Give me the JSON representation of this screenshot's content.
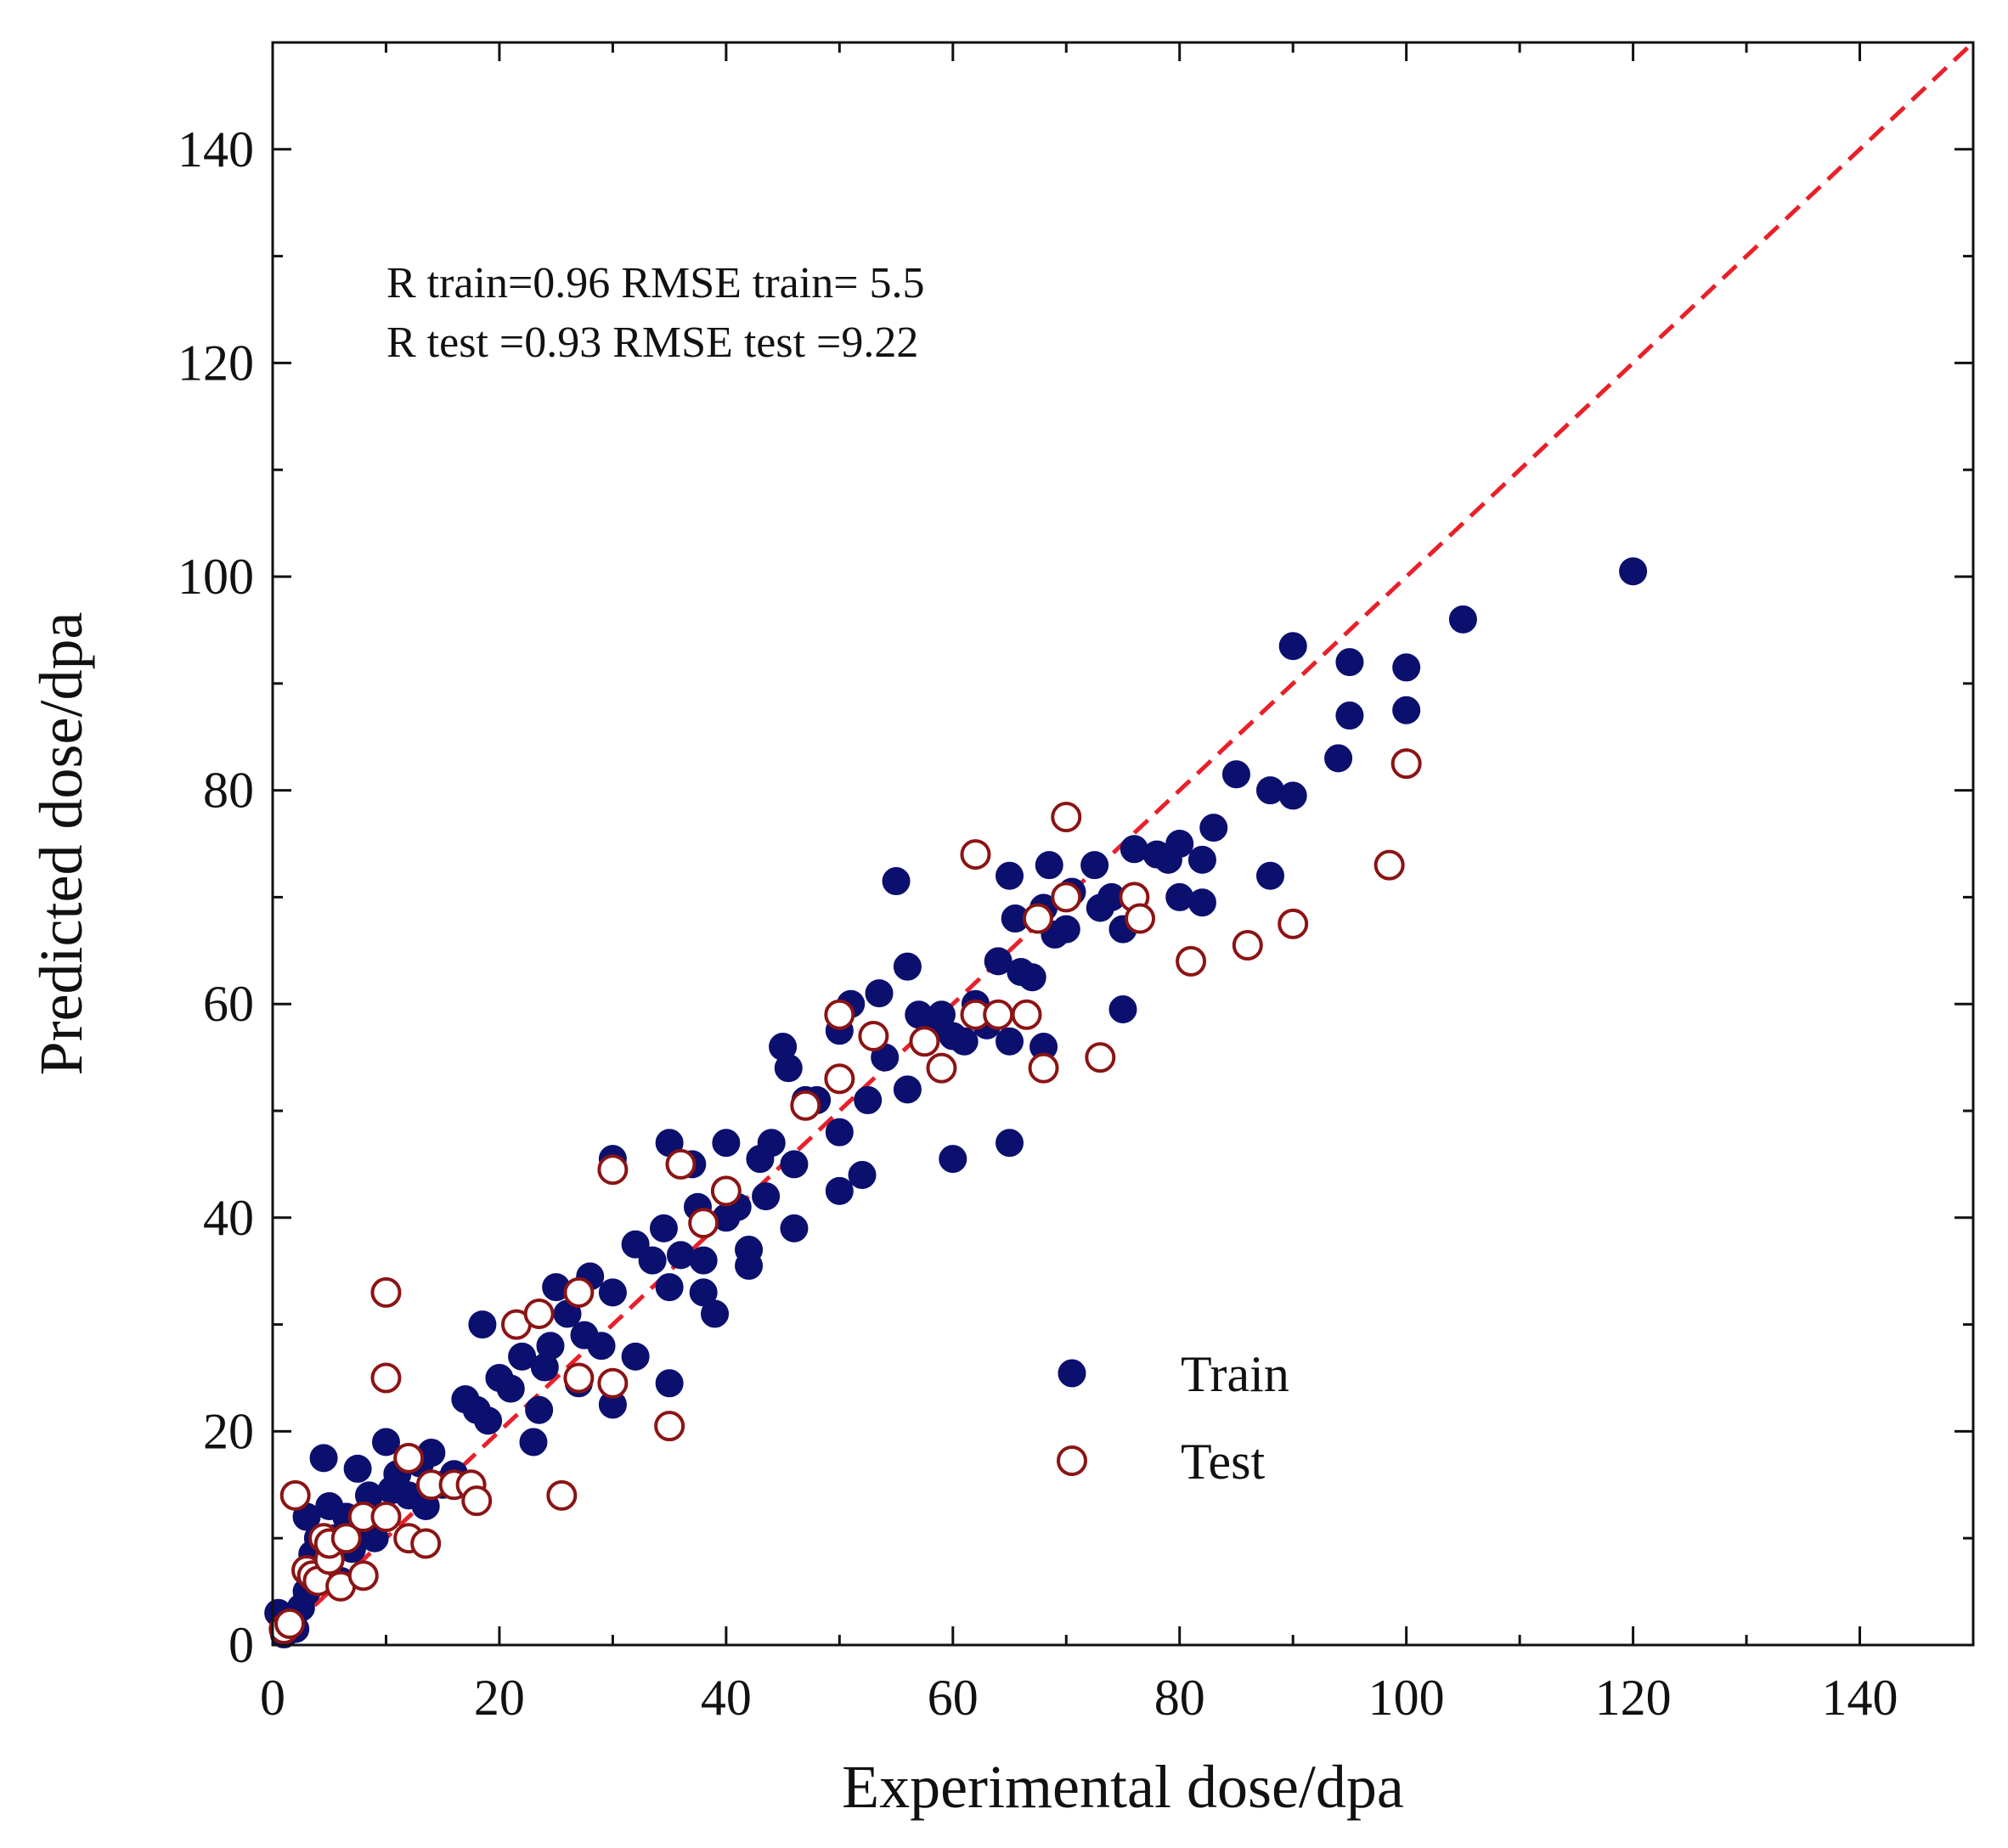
{
  "chart_data": {
    "type": "scatter",
    "xlabel": "Experimental dose/dpa",
    "ylabel": "Predicted dose/dpa",
    "xlim": [
      0,
      150
    ],
    "ylim": [
      0,
      150
    ],
    "xticks": [
      0,
      20,
      40,
      60,
      80,
      100,
      120,
      140
    ],
    "yticks": [
      0,
      20,
      40,
      60,
      80,
      100,
      120,
      140
    ],
    "reference_line": {
      "style": "dashed",
      "color": "#e8202a",
      "slope": 1,
      "intercept": 0
    },
    "annotations": [
      "R train=0.96 RMSE train= 5.5",
      "R test =0.93 RMSE test =9.22"
    ],
    "legend": {
      "placement": "lower-right"
    },
    "series": [
      {
        "name": "Train",
        "marker": "filled-circle",
        "color": "#0b0f6e",
        "points": [
          [
            0.5,
            3
          ],
          [
            1,
            1
          ],
          [
            1.5,
            2.5
          ],
          [
            2,
            1.5
          ],
          [
            2.5,
            3.5
          ],
          [
            3,
            5
          ],
          [
            3.5,
            8.5
          ],
          [
            3,
            12
          ],
          [
            4,
            10
          ],
          [
            4.5,
            17.5
          ],
          [
            5,
            13
          ],
          [
            5.5,
            10
          ],
          [
            6,
            6
          ],
          [
            6.5,
            12
          ],
          [
            7,
            9
          ],
          [
            7.5,
            16.5
          ],
          [
            8,
            11
          ],
          [
            8.5,
            14
          ],
          [
            9,
            10
          ],
          [
            10,
            19
          ],
          [
            10,
            12
          ],
          [
            10.5,
            14.5
          ],
          [
            10,
            25
          ],
          [
            11,
            16
          ],
          [
            12,
            14
          ],
          [
            13,
            17
          ],
          [
            14,
            18
          ],
          [
            13.5,
            13
          ],
          [
            15,
            15
          ],
          [
            16,
            16
          ],
          [
            17,
            23
          ],
          [
            18,
            22
          ],
          [
            18.5,
            30
          ],
          [
            19,
            21
          ],
          [
            20,
            25
          ],
          [
            21,
            24
          ],
          [
            22,
            27
          ],
          [
            23,
            19
          ],
          [
            23.5,
            22
          ],
          [
            24,
            26
          ],
          [
            24.5,
            28
          ],
          [
            25,
            33.5
          ],
          [
            26,
            31
          ],
          [
            27,
            24.5
          ],
          [
            27.5,
            29
          ],
          [
            28,
            34.5
          ],
          [
            29,
            28
          ],
          [
            30,
            45.5
          ],
          [
            30,
            33
          ],
          [
            30,
            22.5
          ],
          [
            32,
            27
          ],
          [
            32,
            37.5
          ],
          [
            33.5,
            36
          ],
          [
            34.5,
            39
          ],
          [
            35,
            47
          ],
          [
            35,
            24.5
          ],
          [
            35,
            33.5
          ],
          [
            36,
            36.5
          ],
          [
            37,
            45
          ],
          [
            37.5,
            41
          ],
          [
            38,
            33
          ],
          [
            38,
            36
          ],
          [
            39,
            31
          ],
          [
            40,
            47
          ],
          [
            40,
            40
          ],
          [
            41,
            41
          ],
          [
            42,
            35.5
          ],
          [
            42,
            37
          ],
          [
            43,
            45.5
          ],
          [
            43.5,
            42
          ],
          [
            44,
            47
          ],
          [
            45,
            56
          ],
          [
            45.5,
            54
          ],
          [
            46,
            45
          ],
          [
            46,
            39
          ],
          [
            47,
            51
          ],
          [
            48,
            51
          ],
          [
            50,
            57.5
          ],
          [
            50,
            48
          ],
          [
            50,
            42.5
          ],
          [
            51,
            60
          ],
          [
            52,
            44
          ],
          [
            52.5,
            51
          ],
          [
            53,
            57
          ],
          [
            53.5,
            61
          ],
          [
            54,
            55
          ],
          [
            55,
            71.5
          ],
          [
            56,
            63.5
          ],
          [
            56,
            52
          ],
          [
            57,
            59
          ],
          [
            58,
            58
          ],
          [
            59,
            59
          ],
          [
            60,
            45.5
          ],
          [
            60,
            57
          ],
          [
            61,
            56.5
          ],
          [
            62,
            60
          ],
          [
            63,
            58
          ],
          [
            64,
            64
          ],
          [
            65,
            72
          ],
          [
            65,
            47
          ],
          [
            65,
            56.5
          ],
          [
            65.5,
            68
          ],
          [
            66,
            63
          ],
          [
            67,
            62.5
          ],
          [
            68,
            69
          ],
          [
            68,
            56
          ],
          [
            68.5,
            73
          ],
          [
            69,
            66.5
          ],
          [
            70,
            67
          ],
          [
            70.5,
            70.5
          ],
          [
            72.5,
            73
          ],
          [
            73,
            69
          ],
          [
            74,
            70
          ],
          [
            75,
            67
          ],
          [
            75,
            59.5
          ],
          [
            76,
            74.5
          ],
          [
            78,
            74
          ],
          [
            79,
            73.5
          ],
          [
            80,
            75
          ],
          [
            80,
            70
          ],
          [
            82,
            69.5
          ],
          [
            82,
            73.5
          ],
          [
            83,
            76.5
          ],
          [
            85,
            81.5
          ],
          [
            88,
            80
          ],
          [
            88,
            72
          ],
          [
            90,
            79.5
          ],
          [
            90,
            93.5
          ],
          [
            94,
            83
          ],
          [
            95,
            92
          ],
          [
            95,
            87
          ],
          [
            100,
            91.5
          ],
          [
            100,
            87.5
          ],
          [
            105,
            96
          ],
          [
            120,
            100.5
          ]
        ]
      },
      {
        "name": "Test",
        "marker": "open-circle",
        "color": "#8b1414",
        "points": [
          [
            1,
            1.5
          ],
          [
            1.5,
            2
          ],
          [
            2,
            14
          ],
          [
            3,
            7
          ],
          [
            3.5,
            6.5
          ],
          [
            4,
            6
          ],
          [
            4.5,
            10
          ],
          [
            5,
            8
          ],
          [
            5,
            9.5
          ],
          [
            6,
            5.5
          ],
          [
            6.5,
            10
          ],
          [
            8,
            6.5
          ],
          [
            8,
            12
          ],
          [
            10,
            33
          ],
          [
            10,
            25
          ],
          [
            10,
            12
          ],
          [
            12,
            17.5
          ],
          [
            12,
            10
          ],
          [
            13.5,
            9.5
          ],
          [
            14,
            15
          ],
          [
            16,
            15
          ],
          [
            17.5,
            15
          ],
          [
            18,
            13.5
          ],
          [
            21.5,
            30
          ],
          [
            23.5,
            31
          ],
          [
            25.5,
            14
          ],
          [
            27,
            33
          ],
          [
            27,
            25
          ],
          [
            30,
            24.5
          ],
          [
            30,
            44.5
          ],
          [
            35,
            20.5
          ],
          [
            36,
            45
          ],
          [
            38,
            39.5
          ],
          [
            40,
            42.5
          ],
          [
            47,
            50.5
          ],
          [
            50,
            59
          ],
          [
            50,
            53
          ],
          [
            53,
            57
          ],
          [
            57.5,
            56.5
          ],
          [
            59,
            54
          ],
          [
            62,
            74
          ],
          [
            62,
            59
          ],
          [
            64,
            59
          ],
          [
            66.5,
            59
          ],
          [
            67.5,
            68
          ],
          [
            68,
            54
          ],
          [
            70,
            77.5
          ],
          [
            70,
            70
          ],
          [
            73,
            55
          ],
          [
            76,
            70
          ],
          [
            76.5,
            68
          ],
          [
            81,
            64
          ],
          [
            86,
            65.5
          ],
          [
            90,
            67.5
          ],
          [
            98.5,
            73
          ],
          [
            100,
            82.5
          ]
        ]
      }
    ]
  }
}
